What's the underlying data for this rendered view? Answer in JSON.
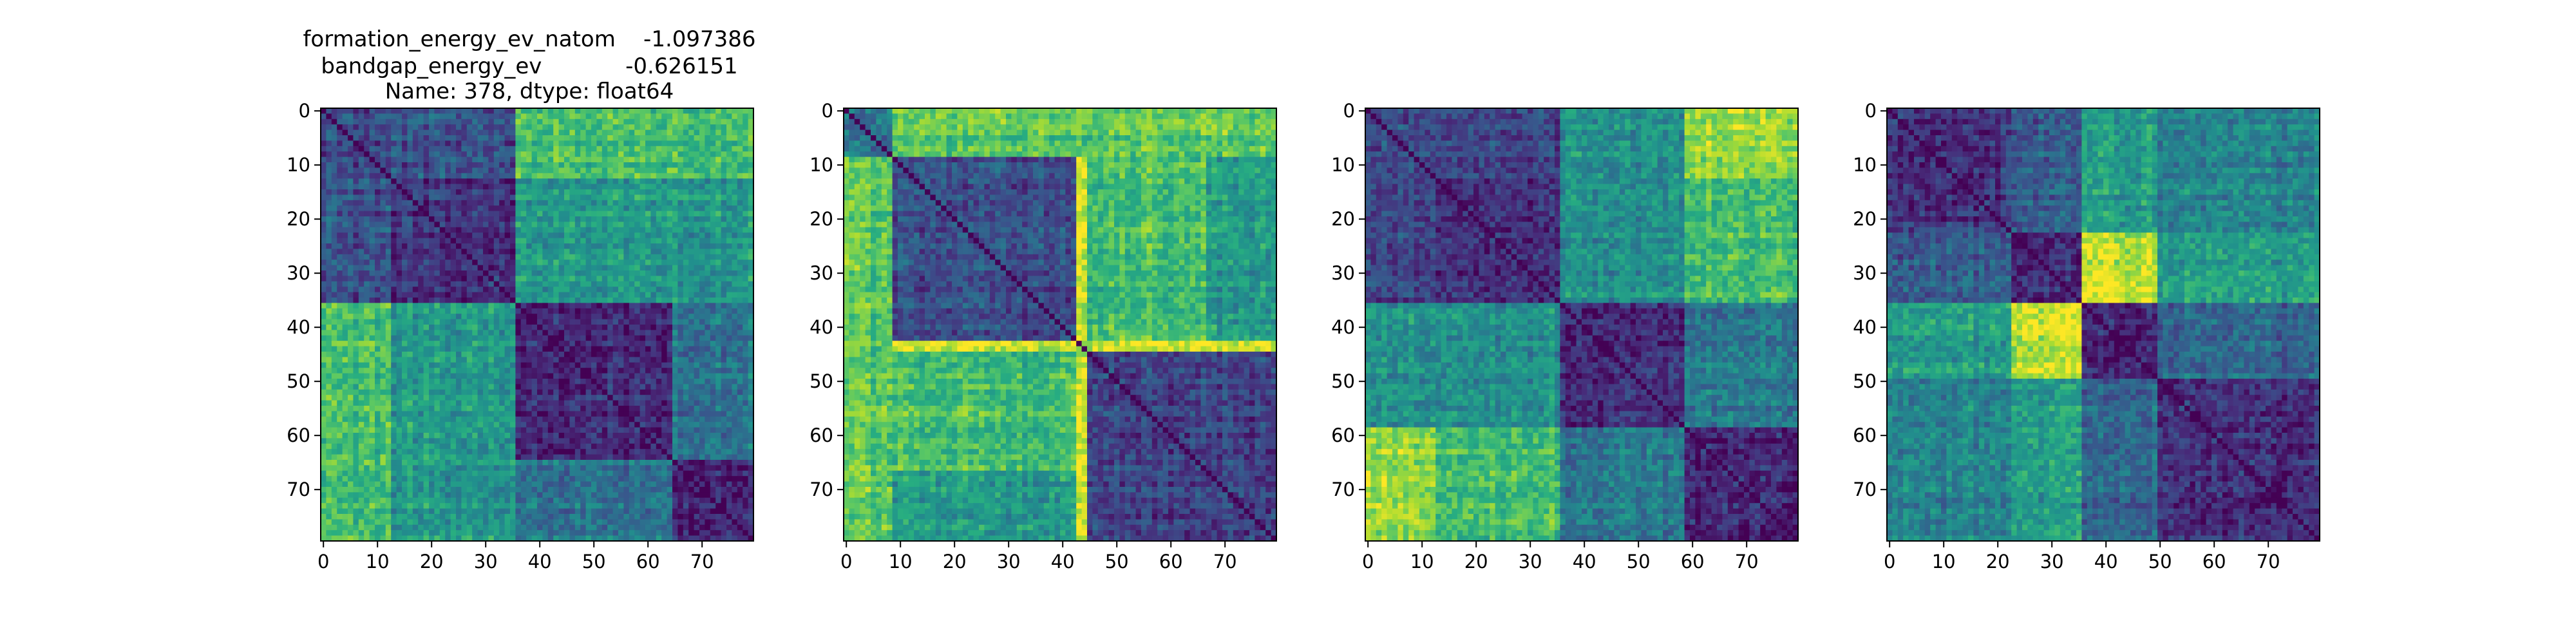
{
  "figure": {
    "title_lines": [
      "formation_energy_ev_natom    -1.097386",
      "bandgap_energy_ev            -0.626151",
      "Name: 378, dtype: float64"
    ]
  },
  "chart_data": [
    {
      "type": "heatmap",
      "title": "",
      "x_ticks": [
        0,
        10,
        20,
        30,
        40,
        50,
        60,
        70
      ],
      "y_ticks": [
        0,
        10,
        20,
        30,
        40,
        50,
        60,
        70
      ],
      "xlim": [
        -0.5,
        79.5
      ],
      "ylim": [
        79.5,
        -0.5
      ],
      "n": 80,
      "colormap": "viridis",
      "diagonal": "zero",
      "blocks": [
        {
          "rows": [
            0,
            12
          ],
          "cols": [
            0,
            12
          ],
          "level": 0.2
        },
        {
          "rows": [
            0,
            12
          ],
          "cols": [
            13,
            35
          ],
          "level": 0.25
        },
        {
          "rows": [
            0,
            12
          ],
          "cols": [
            36,
            64
          ],
          "level": 0.5
        },
        {
          "rows": [
            0,
            12
          ],
          "cols": [
            65,
            79
          ],
          "level": 0.85
        },
        {
          "rows": [
            13,
            35
          ],
          "cols": [
            13,
            35
          ],
          "level": 0.15
        },
        {
          "rows": [
            13,
            35
          ],
          "cols": [
            36,
            64
          ],
          "level": 0.45
        },
        {
          "rows": [
            13,
            35
          ],
          "cols": [
            65,
            79
          ],
          "level": 0.65
        },
        {
          "rows": [
            36,
            64
          ],
          "cols": [
            36,
            64
          ],
          "level": 0.12
        },
        {
          "rows": [
            36,
            64
          ],
          "cols": [
            65,
            79
          ],
          "level": 0.4
        },
        {
          "rows": [
            65,
            79
          ],
          "cols": [
            65,
            79
          ],
          "level": 0.1
        },
        {
          "rows": [
            36,
            79
          ],
          "cols": [
            0,
            12
          ],
          "level": 0.7
        },
        {
          "rows": [
            36,
            79
          ],
          "cols": [
            13,
            35
          ],
          "level": 0.55
        }
      ]
    },
    {
      "type": "heatmap",
      "title": "",
      "x_ticks": [
        0,
        10,
        20,
        30,
        40,
        50,
        60,
        70
      ],
      "y_ticks": [
        0,
        10,
        20,
        30,
        40,
        50,
        60,
        70
      ],
      "xlim": [
        -0.5,
        79.5
      ],
      "ylim": [
        79.5,
        -0.5
      ],
      "n": 80,
      "colormap": "viridis",
      "diagonal": "zero",
      "blocks": [
        {
          "rows": [
            0,
            8
          ],
          "cols": [
            0,
            8
          ],
          "level": 0.35
        },
        {
          "rows": [
            0,
            8
          ],
          "cols": [
            9,
            79
          ],
          "level": 0.8
        },
        {
          "rows": [
            9,
            79
          ],
          "cols": [
            9,
            42
          ],
          "level": 0.25
        },
        {
          "rows": [
            9,
            79
          ],
          "cols": [
            45,
            79
          ],
          "level": 0.55
        },
        {
          "rows": [
            9,
            42
          ],
          "cols": [
            45,
            66
          ],
          "level": 0.7
        },
        {
          "rows": [
            45,
            79
          ],
          "cols": [
            45,
            79
          ],
          "level": 0.2
        },
        {
          "rows": [
            43,
            44
          ],
          "cols": [
            0,
            79
          ],
          "level": 0.95
        },
        {
          "rows": [
            0,
            79
          ],
          "cols": [
            43,
            44
          ],
          "level": 0.95
        },
        {
          "rows": [
            9,
            79
          ],
          "cols": [
            0,
            8
          ],
          "level": 0.75
        }
      ]
    },
    {
      "type": "heatmap",
      "title": "",
      "x_ticks": [
        0,
        10,
        20,
        30,
        40,
        50,
        60,
        70
      ],
      "y_ticks": [
        0,
        10,
        20,
        30,
        40,
        50,
        60,
        70
      ],
      "xlim": [
        -0.5,
        79.5
      ],
      "ylim": [
        79.5,
        -0.5
      ],
      "n": 80,
      "colormap": "viridis",
      "diagonal": "zero",
      "blocks": [
        {
          "rows": [
            0,
            12
          ],
          "cols": [
            0,
            35
          ],
          "level": 0.22
        },
        {
          "rows": [
            0,
            12
          ],
          "cols": [
            36,
            58
          ],
          "level": 0.5
        },
        {
          "rows": [
            0,
            12
          ],
          "cols": [
            59,
            79
          ],
          "level": 0.85
        },
        {
          "rows": [
            13,
            35
          ],
          "cols": [
            13,
            35
          ],
          "level": 0.15
        },
        {
          "rows": [
            13,
            35
          ],
          "cols": [
            36,
            58
          ],
          "level": 0.45
        },
        {
          "rows": [
            13,
            35
          ],
          "cols": [
            59,
            79
          ],
          "level": 0.65
        },
        {
          "rows": [
            36,
            58
          ],
          "cols": [
            36,
            58
          ],
          "level": 0.12
        },
        {
          "rows": [
            36,
            58
          ],
          "cols": [
            59,
            79
          ],
          "level": 0.4
        },
        {
          "rows": [
            59,
            79
          ],
          "cols": [
            59,
            79
          ],
          "level": 0.1
        },
        {
          "rows": [
            36,
            58
          ],
          "cols": [
            0,
            35
          ],
          "level": 0.5
        },
        {
          "rows": [
            59,
            79
          ],
          "cols": [
            0,
            12
          ],
          "level": 0.85
        },
        {
          "rows": [
            59,
            79
          ],
          "cols": [
            13,
            35
          ],
          "level": 0.7
        }
      ]
    },
    {
      "type": "heatmap",
      "title": "",
      "x_ticks": [
        0,
        10,
        20,
        30,
        40,
        50,
        60,
        70
      ],
      "y_ticks": [
        0,
        10,
        20,
        30,
        40,
        50,
        60,
        70
      ],
      "xlim": [
        -0.5,
        79.5
      ],
      "ylim": [
        79.5,
        -0.5
      ],
      "n": 80,
      "colormap": "viridis",
      "diagonal": "zero",
      "blocks": [
        {
          "rows": [
            0,
            22
          ],
          "cols": [
            0,
            22
          ],
          "level": 0.15
        },
        {
          "rows": [
            0,
            22
          ],
          "cols": [
            23,
            35
          ],
          "level": 0.3
        },
        {
          "rows": [
            0,
            12
          ],
          "cols": [
            36,
            49
          ],
          "level": 0.7
        },
        {
          "rows": [
            13,
            22
          ],
          "cols": [
            36,
            49
          ],
          "level": 0.55
        },
        {
          "rows": [
            0,
            22
          ],
          "cols": [
            50,
            79
          ],
          "level": 0.4
        },
        {
          "rows": [
            23,
            35
          ],
          "cols": [
            23,
            35
          ],
          "level": 0.12
        },
        {
          "rows": [
            23,
            35
          ],
          "cols": [
            36,
            49
          ],
          "level": 0.85
        },
        {
          "rows": [
            23,
            35
          ],
          "cols": [
            50,
            79
          ],
          "level": 0.6
        },
        {
          "rows": [
            36,
            49
          ],
          "cols": [
            0,
            22
          ],
          "level": 0.55
        },
        {
          "rows": [
            36,
            49
          ],
          "cols": [
            23,
            35
          ],
          "level": 0.9
        },
        {
          "rows": [
            36,
            49
          ],
          "cols": [
            36,
            49
          ],
          "level": 0.12
        },
        {
          "rows": [
            36,
            49
          ],
          "cols": [
            50,
            79
          ],
          "level": 0.35
        },
        {
          "rows": [
            50,
            79
          ],
          "cols": [
            0,
            22
          ],
          "level": 0.45
        },
        {
          "rows": [
            50,
            79
          ],
          "cols": [
            23,
            35
          ],
          "level": 0.55
        },
        {
          "rows": [
            50,
            79
          ],
          "cols": [
            50,
            79
          ],
          "level": 0.12
        }
      ]
    }
  ]
}
